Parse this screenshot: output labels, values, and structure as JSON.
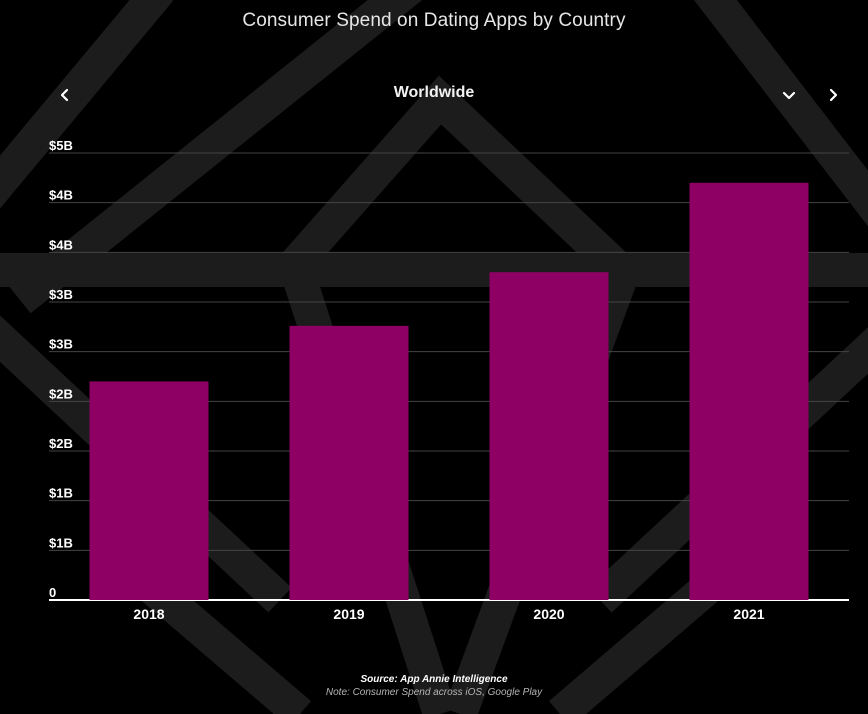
{
  "header": {
    "title": "Consumer Spend on Dating Apps by Country",
    "selected_country": "Worldwide"
  },
  "nav": {
    "prev_icon": "chevron-left-icon",
    "dropdown_icon": "chevron-down-icon",
    "next_icon": "chevron-right-icon"
  },
  "colors": {
    "background": "#000000",
    "bar": "#8e0064",
    "gridline": "#444444",
    "baseline": "#ffffff",
    "pattern": "#1c1c1c"
  },
  "chart_data": {
    "type": "bar",
    "title": "Consumer Spend on Dating Apps by Country",
    "subtitle": "Worldwide",
    "categories": [
      "2018",
      "2019",
      "2020",
      "2021"
    ],
    "values": [
      2.2,
      2.76,
      3.3,
      4.2
    ],
    "unit": "USD billions",
    "ylim": [
      0,
      4.5
    ],
    "y_tick_labels": [
      "0",
      "$1B",
      "$1B",
      "$2B",
      "$2B",
      "$3B",
      "$3B",
      "$4B",
      "$4B",
      "$5B"
    ],
    "xlabel": "",
    "ylabel": "",
    "grid": true,
    "legend": "none"
  },
  "footer": {
    "source": "Source: App Annie Intelligence",
    "note": "Note: Consumer Spend across iOS, Google Play"
  }
}
